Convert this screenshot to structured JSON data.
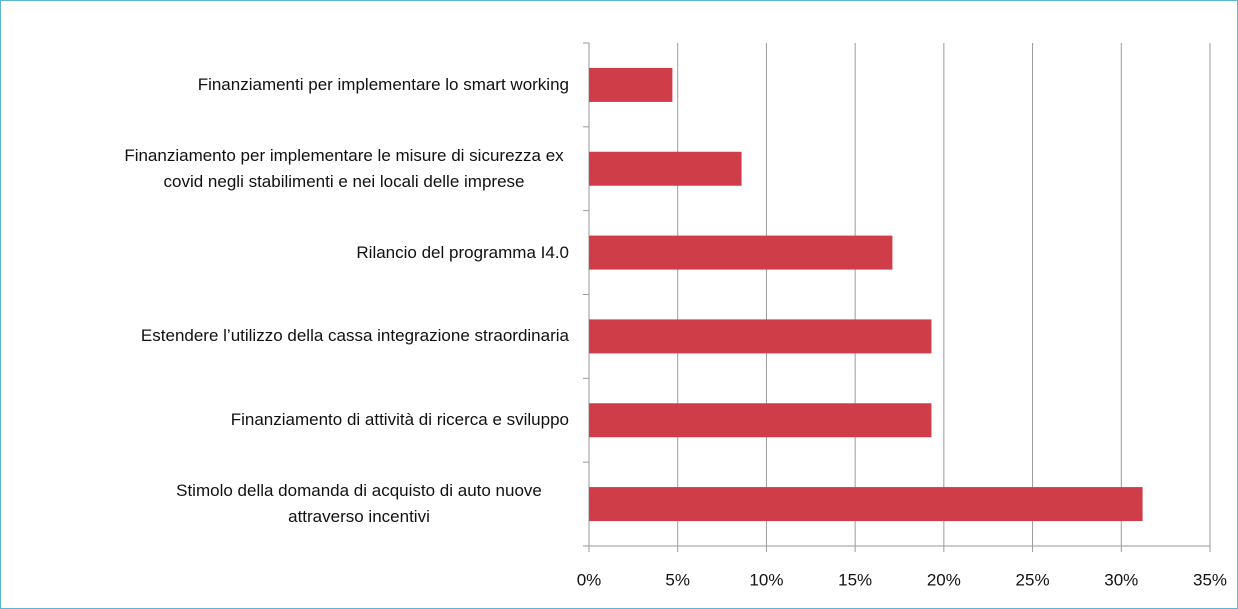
{
  "chart_data": {
    "type": "bar",
    "orientation": "horizontal",
    "categories": [
      "Finanziamenti per implementare lo smart working",
      "Finanziamento per implementare le misure di sicurezza ex covid negli stabilimenti e nei locali delle imprese",
      "Rilancio del programma I4.0",
      "Estendere l’utilizzo della cassa integrazione straordinaria",
      "Finanziamento di attività di ricerca e sviluppo",
      "Stimolo della domanda di acquisto di auto nuove attraverso incentivi"
    ],
    "values": [
      4.7,
      8.6,
      17.1,
      19.3,
      19.3,
      31.2
    ],
    "color": "#cf3d49",
    "xlim": [
      0,
      35
    ],
    "xticks": [
      {
        "value": 0,
        "label": "0%"
      },
      {
        "value": 5,
        "label": "5%"
      },
      {
        "value": 10,
        "label": "10%"
      },
      {
        "value": 15,
        "label": "15%"
      },
      {
        "value": 20,
        "label": "20%"
      },
      {
        "value": 25,
        "label": "25%"
      },
      {
        "value": 30,
        "label": "30%"
      },
      {
        "value": 35,
        "label": "35%"
      }
    ],
    "grid": true
  }
}
